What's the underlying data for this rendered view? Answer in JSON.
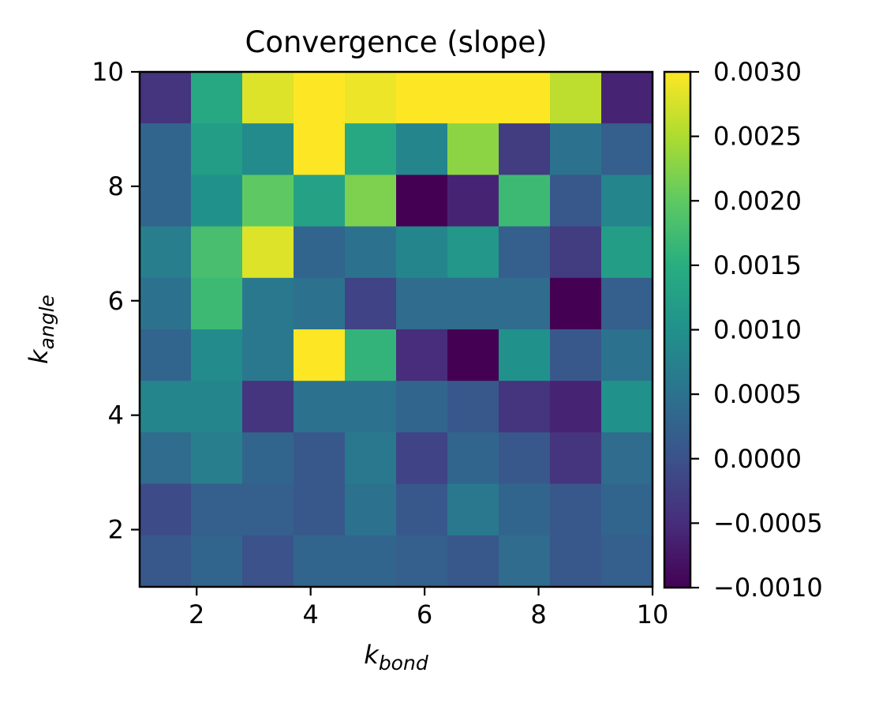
{
  "chart_data": {
    "type": "heatmap",
    "title": "Convergence (slope)",
    "xlabel_main": "k",
    "xlabel_sub": "bond",
    "ylabel_main": "k",
    "ylabel_sub": "angle",
    "xlim": [
      1,
      10
    ],
    "ylim": [
      1,
      10
    ],
    "x_ticks": [
      {
        "value": 2,
        "label": "2"
      },
      {
        "value": 4,
        "label": "4"
      },
      {
        "value": 6,
        "label": "6"
      },
      {
        "value": 8,
        "label": "8"
      },
      {
        "value": 10,
        "label": "10"
      }
    ],
    "y_ticks": [
      {
        "value": 2,
        "label": "2"
      },
      {
        "value": 4,
        "label": "4"
      },
      {
        "value": 6,
        "label": "6"
      },
      {
        "value": 8,
        "label": "8"
      },
      {
        "value": 10,
        "label": "10"
      }
    ],
    "grid": false,
    "colormap": "viridis",
    "colorbar": {
      "vmin": -0.001,
      "vmax": 0.003,
      "ticks": [
        {
          "value": 0.003,
          "label": "0.0030"
        },
        {
          "value": 0.0025,
          "label": "0.0025"
        },
        {
          "value": 0.002,
          "label": "0.0020"
        },
        {
          "value": 0.0015,
          "label": "0.0015"
        },
        {
          "value": 0.001,
          "label": "0.0010"
        },
        {
          "value": 0.0005,
          "label": "0.0005"
        },
        {
          "value": 0.0,
          "label": "0.0000"
        },
        {
          "value": -0.0005,
          "label": "−0.0005"
        },
        {
          "value": -0.001,
          "label": "−0.0010"
        }
      ]
    },
    "rows_top_to_bottom": [
      [
        -0.0004,
        0.0014,
        0.0028,
        0.003,
        0.0029,
        0.003,
        0.003,
        0.003,
        0.0026,
        -0.0006
      ],
      [
        0.0003,
        0.0012,
        0.0009,
        0.003,
        0.0014,
        0.0008,
        0.0023,
        -0.0003,
        0.0005,
        0.0002
      ],
      [
        0.0003,
        0.001,
        0.002,
        0.0013,
        0.0022,
        -0.001,
        -0.0006,
        0.0017,
        0.0001,
        0.0008
      ],
      [
        0.0007,
        0.0018,
        0.0028,
        0.0003,
        0.0005,
        0.0008,
        0.0011,
        0.0002,
        -0.0003,
        0.0012
      ],
      [
        0.0005,
        0.0017,
        0.0006,
        0.0005,
        -0.0002,
        0.0004,
        0.0004,
        0.0004,
        -0.001,
        0.0002
      ],
      [
        0.0003,
        0.0009,
        0.0006,
        0.003,
        0.0016,
        -0.0005,
        -0.001,
        0.001,
        0.0001,
        0.0005
      ],
      [
        0.0008,
        0.0008,
        -0.0004,
        0.0005,
        0.0005,
        0.0003,
        0.0001,
        -0.0004,
        -0.0006,
        0.001
      ],
      [
        0.0004,
        0.0007,
        0.0003,
        0.0001,
        0.0006,
        -0.0002,
        0.0003,
        0.0001,
        -0.0004,
        0.0004
      ],
      [
        -0.0001,
        0.0002,
        0.0002,
        0.0001,
        0.0005,
        0.0001,
        0.0006,
        0.0003,
        0.0001,
        0.0003
      ],
      [
        0.0001,
        0.0003,
        0.0,
        0.0003,
        0.0003,
        0.0002,
        0.0001,
        0.0004,
        0.0001,
        0.0002
      ]
    ]
  }
}
